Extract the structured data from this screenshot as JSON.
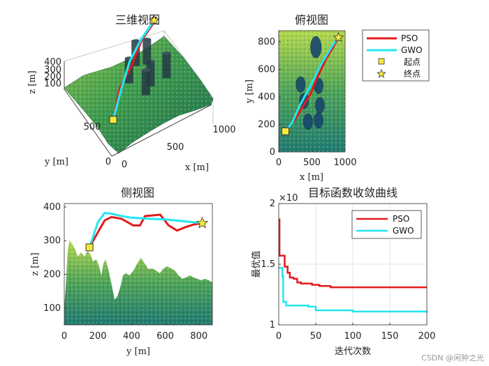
{
  "colors": {
    "pso": "#e31a1c",
    "gwo": "#22e6f0",
    "start": "#f5e93a",
    "end": "#f5e93a"
  },
  "chart_data": [
    {
      "type": "line",
      "title": "三维视图",
      "xlabel": "x [m]",
      "ylabel": "y [m]",
      "zlabel": "z [m]",
      "x_ticks": [
        "0",
        "500",
        "1000"
      ],
      "y_ticks": [
        "0",
        "500"
      ],
      "z_ticks": [
        "100",
        "200",
        "300",
        "400"
      ],
      "series": [
        {
          "name": "PSO",
          "x": [
            100,
            300,
            500,
            700,
            900
          ],
          "y": [
            150,
            380,
            520,
            700,
            820
          ]
        },
        {
          "name": "GWO",
          "x": [
            100,
            300,
            500,
            700,
            900
          ],
          "y": [
            150,
            360,
            560,
            710,
            830
          ]
        }
      ]
    },
    {
      "type": "line",
      "title": "俯视图",
      "xlabel": "x [m]",
      "ylabel": "y [m]",
      "x_ticks": [
        "0",
        "500",
        "1000"
      ],
      "y_ticks": [
        "0",
        "200",
        "400",
        "600",
        "800"
      ],
      "xlim": [
        0,
        1000
      ],
      "ylim": [
        0,
        880
      ],
      "series": [
        {
          "name": "PSO",
          "x": [
            100,
            250,
            400,
            480,
            560,
            640,
            720,
            820,
            900
          ],
          "y": [
            150,
            240,
            360,
            420,
            520,
            600,
            680,
            760,
            830
          ]
        },
        {
          "name": "GWO",
          "x": [
            100,
            200,
            300,
            420,
            520,
            620,
            720,
            820,
            900
          ],
          "y": [
            150,
            210,
            320,
            430,
            520,
            620,
            700,
            780,
            830
          ]
        }
      ],
      "legend": {
        "placement": "right",
        "entries": [
          "PSO",
          "GWO",
          "起点",
          "终点"
        ]
      }
    },
    {
      "type": "line",
      "title": "侧视图",
      "xlabel": "y [m]",
      "ylabel": "z [m]",
      "x_ticks": [
        "0",
        "200",
        "400",
        "600",
        "800"
      ],
      "y_ticks": [
        "100",
        "200",
        "300",
        "400"
      ],
      "xlim": [
        0,
        880
      ],
      "ylim": [
        50,
        410
      ],
      "series": [
        {
          "name": "PSO",
          "x": [
            150,
            200,
            240,
            280,
            340,
            410,
            450,
            480,
            530,
            570,
            620,
            670,
            720,
            770,
            820
          ],
          "y": [
            280,
            325,
            360,
            370,
            365,
            345,
            345,
            373,
            375,
            377,
            345,
            330,
            340,
            348,
            352
          ]
        },
        {
          "name": "GWO",
          "x": [
            150,
            200,
            240,
            280,
            340,
            400,
            500,
            600,
            700,
            820
          ],
          "y": [
            280,
            355,
            382,
            380,
            373,
            368,
            365,
            363,
            358,
            352
          ]
        }
      ],
      "start": {
        "y": 150,
        "z": 280
      },
      "end": {
        "y": 820,
        "z": 352
      }
    },
    {
      "type": "line",
      "title": "目标函数收敛曲线",
      "xlabel": "迭代次数",
      "ylabel": "最优值",
      "exponent": "×10",
      "x_ticks": [
        "0",
        "50",
        "100",
        "150",
        "200"
      ],
      "y_ticks": [
        "1",
        "1.5",
        "2"
      ],
      "xlim": [
        0,
        200
      ],
      "ylim": [
        1,
        2
      ],
      "series": [
        {
          "name": "PSO",
          "x": [
            0,
            1,
            3,
            8,
            12,
            15,
            20,
            25,
            30,
            45,
            55,
            70,
            100,
            150,
            200
          ],
          "y": [
            1.87,
            1.57,
            1.57,
            1.48,
            1.43,
            1.39,
            1.38,
            1.35,
            1.34,
            1.33,
            1.32,
            1.31,
            1.31,
            1.31,
            1.31
          ]
        },
        {
          "name": "GWO",
          "x": [
            0,
            2,
            5,
            6,
            10,
            30,
            40,
            50,
            60,
            100,
            150,
            200
          ],
          "y": [
            1.47,
            1.47,
            1.4,
            1.19,
            1.16,
            1.16,
            1.15,
            1.12,
            1.12,
            1.11,
            1.11,
            1.1
          ]
        }
      ],
      "legend": {
        "placement": "top-right",
        "entries": [
          "PSO",
          "GWO"
        ]
      }
    }
  ],
  "watermark": "CSDN @闲狆之光"
}
